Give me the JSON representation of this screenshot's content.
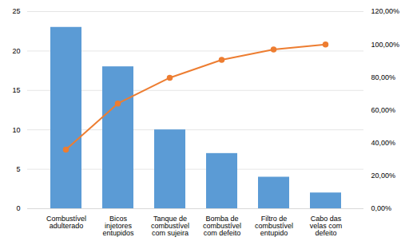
{
  "chart_data": {
    "type": "bar",
    "categories": [
      "Combustível\nadulterado",
      "Bicos\ninjetores\nentupidos",
      "Tanque de\ncombustível\ncom sujeira",
      "Bomba de\ncombustível\ncom defeito",
      "Filtro de\ncombustível\nentupido",
      "Cabo das\nvelas com\ndefeito"
    ],
    "series": [
      {
        "type": "bar",
        "color": "#5B9BD5",
        "values": [
          23,
          18,
          10,
          7,
          4,
          2
        ]
      },
      {
        "type": "line",
        "color": "#ED7D31",
        "marker": "circle",
        "axis": "y2",
        "values": [
          0.359375,
          0.640625,
          0.796875,
          0.90625,
          0.96875,
          1.0
        ]
      }
    ],
    "ylim": [
      0,
      25
    ],
    "yticks": [
      0,
      5,
      10,
      15,
      20,
      25
    ],
    "y2lim": [
      0,
      1.2
    ],
    "y2ticks": [
      {
        "value": 0.0,
        "label": "0,00%"
      },
      {
        "value": 0.2,
        "label": "20,00%"
      },
      {
        "value": 0.4,
        "label": "40,00%"
      },
      {
        "value": 0.6,
        "label": "60,00%"
      },
      {
        "value": 0.8,
        "label": "80,00%"
      },
      {
        "value": 1.0,
        "label": "100,00%"
      },
      {
        "value": 1.2,
        "label": "120,00%"
      }
    ],
    "grid": true
  }
}
